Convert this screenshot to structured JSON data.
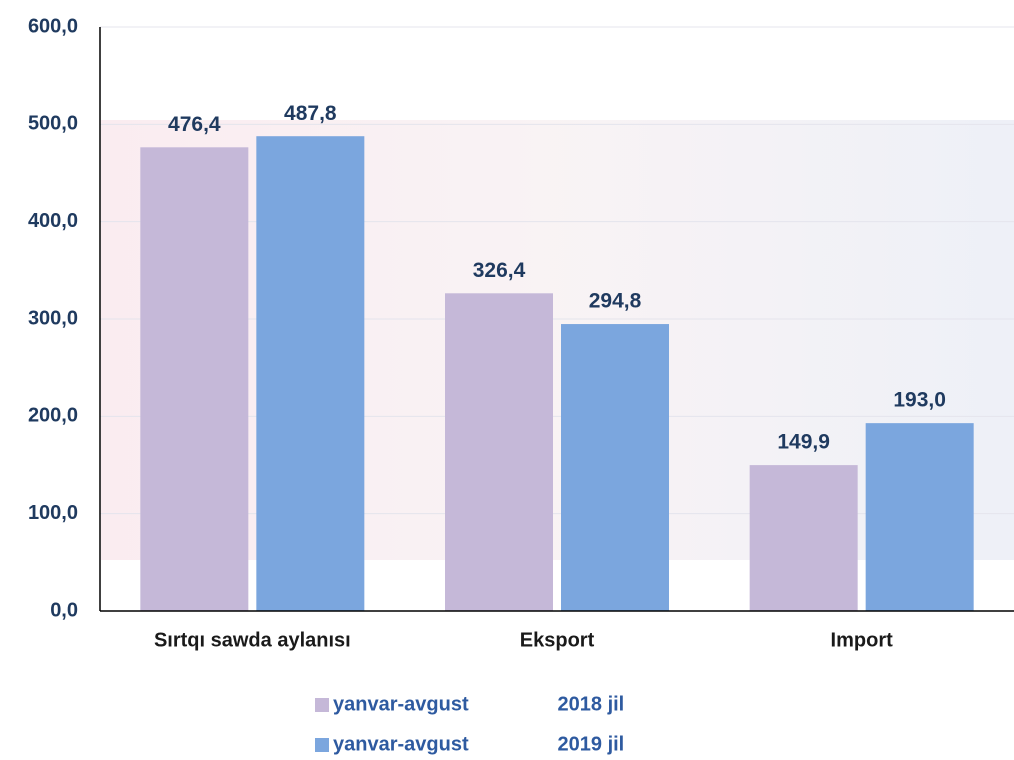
{
  "chart_data": {
    "type": "bar",
    "categories": [
      "Sırtqı sawda aylanısı",
      "Eksport",
      "Import"
    ],
    "series": [
      {
        "name": "yanvar-avgust                2018 jil",
        "color": "#c5b8d8",
        "values": [
          476.4,
          326.4,
          149.9
        ],
        "value_labels": [
          "476,4",
          "326,4",
          "149,9"
        ]
      },
      {
        "name": "yanvar-avgust                2019 jil",
        "color": "#7ba6de",
        "values": [
          487.8,
          294.8,
          193.0
        ],
        "value_labels": [
          "487,8",
          "294,8",
          "193,0"
        ]
      }
    ],
    "ylim": [
      0,
      600
    ],
    "yticks": [
      {
        "value": 0,
        "label": "0,0"
      },
      {
        "value": 100,
        "label": "100,0"
      },
      {
        "value": 200,
        "label": "200,0"
      },
      {
        "value": 300,
        "label": "300,0"
      },
      {
        "value": 400,
        "label": "400,0"
      },
      {
        "value": 500,
        "label": "500,0"
      },
      {
        "value": 600,
        "label": "600,0"
      }
    ],
    "grid": true
  }
}
